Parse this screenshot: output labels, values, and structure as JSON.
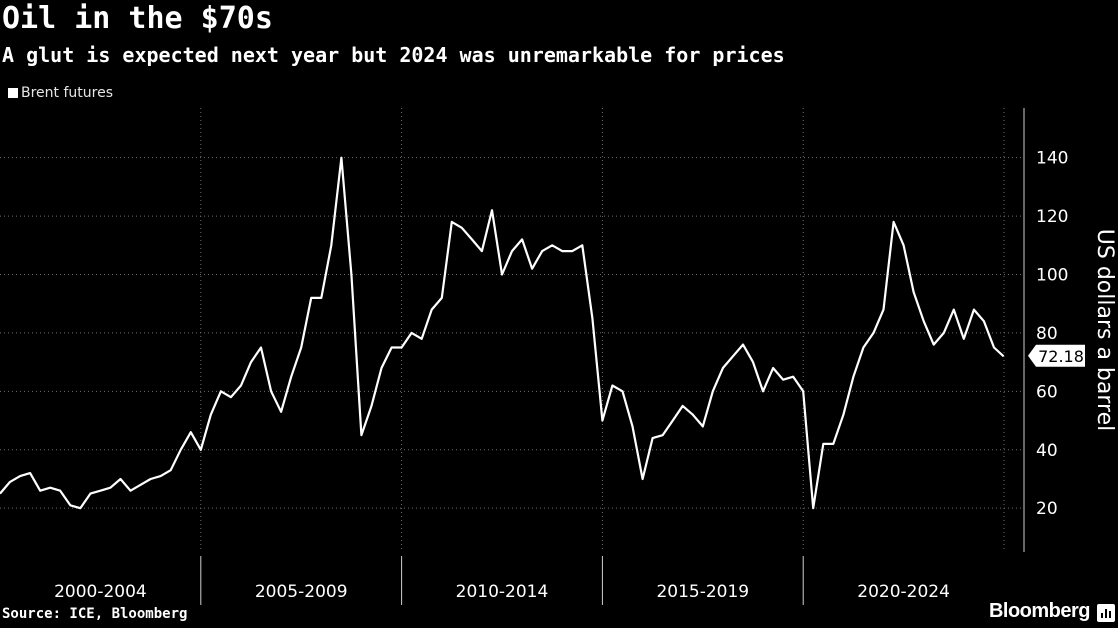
{
  "header": {
    "title": "Oil in the $70s",
    "subtitle": "A glut is expected next year but 2024 was unremarkable for prices"
  },
  "legend": {
    "series_name": "Brent futures"
  },
  "footer": {
    "source": "Source: ICE, Bloomberg",
    "brand": "Bloomberg"
  },
  "colors": {
    "background": "#000000",
    "line": "#ffffff",
    "grid": "#6e6e6e"
  },
  "chart_data": {
    "type": "line",
    "title": "Oil in the $70s",
    "subtitle": "A glut is expected next year but 2024 was unremarkable for prices",
    "ylabel": "US dollars a barrel",
    "xlabel": "",
    "ylim": [
      5,
      157
    ],
    "xlim": [
      2000.0,
      2025.0
    ],
    "y_ticks": [
      20,
      40,
      60,
      80,
      100,
      120,
      140
    ],
    "x_categories": [
      "2000-2004",
      "2005-2009",
      "2010-2014",
      "2015-2019",
      "2020-2024"
    ],
    "grid": true,
    "legend_position": "top-left",
    "last_value_label": "72.18",
    "series": [
      {
        "name": "Brent futures",
        "x": [
          2000.0,
          2000.25,
          2000.5,
          2000.75,
          2001.0,
          2001.25,
          2001.5,
          2001.75,
          2002.0,
          2002.25,
          2002.5,
          2002.75,
          2003.0,
          2003.25,
          2003.5,
          2003.75,
          2004.0,
          2004.25,
          2004.5,
          2004.75,
          2005.0,
          2005.25,
          2005.5,
          2005.75,
          2006.0,
          2006.25,
          2006.5,
          2006.75,
          2007.0,
          2007.25,
          2007.5,
          2007.75,
          2008.0,
          2008.25,
          2008.5,
          2008.75,
          2009.0,
          2009.25,
          2009.5,
          2009.75,
          2010.0,
          2010.25,
          2010.5,
          2010.75,
          2011.0,
          2011.25,
          2011.5,
          2011.75,
          2012.0,
          2012.25,
          2012.5,
          2012.75,
          2013.0,
          2013.25,
          2013.5,
          2013.75,
          2014.0,
          2014.25,
          2014.5,
          2014.75,
          2015.0,
          2015.25,
          2015.5,
          2015.75,
          2016.0,
          2016.25,
          2016.5,
          2016.75,
          2017.0,
          2017.25,
          2017.5,
          2017.75,
          2018.0,
          2018.25,
          2018.5,
          2018.75,
          2019.0,
          2019.25,
          2019.5,
          2019.75,
          2020.0,
          2020.25,
          2020.5,
          2020.75,
          2021.0,
          2021.25,
          2021.5,
          2021.75,
          2022.0,
          2022.25,
          2022.5,
          2022.75,
          2023.0,
          2023.25,
          2023.5,
          2023.75,
          2024.0,
          2024.25,
          2024.5,
          2024.75,
          2024.99
        ],
        "values": [
          25,
          29,
          31,
          32,
          26,
          27,
          26,
          21,
          20,
          25,
          26,
          27,
          30,
          26,
          28,
          30,
          31,
          33,
          40,
          46,
          40,
          52,
          60,
          58,
          62,
          70,
          75,
          60,
          53,
          65,
          75,
          92,
          92,
          110,
          140,
          100,
          45,
          55,
          68,
          75,
          75,
          80,
          78,
          88,
          92,
          118,
          116,
          112,
          108,
          122,
          100,
          108,
          112,
          102,
          108,
          110,
          108,
          108,
          110,
          85,
          50,
          62,
          60,
          48,
          30,
          44,
          45,
          50,
          55,
          52,
          48,
          60,
          68,
          72,
          76,
          70,
          60,
          68,
          64,
          65,
          60,
          20,
          42,
          42,
          52,
          65,
          75,
          80,
          88,
          118,
          110,
          94,
          84,
          76,
          80,
          88,
          78,
          88,
          84,
          75,
          72
        ]
      }
    ]
  }
}
